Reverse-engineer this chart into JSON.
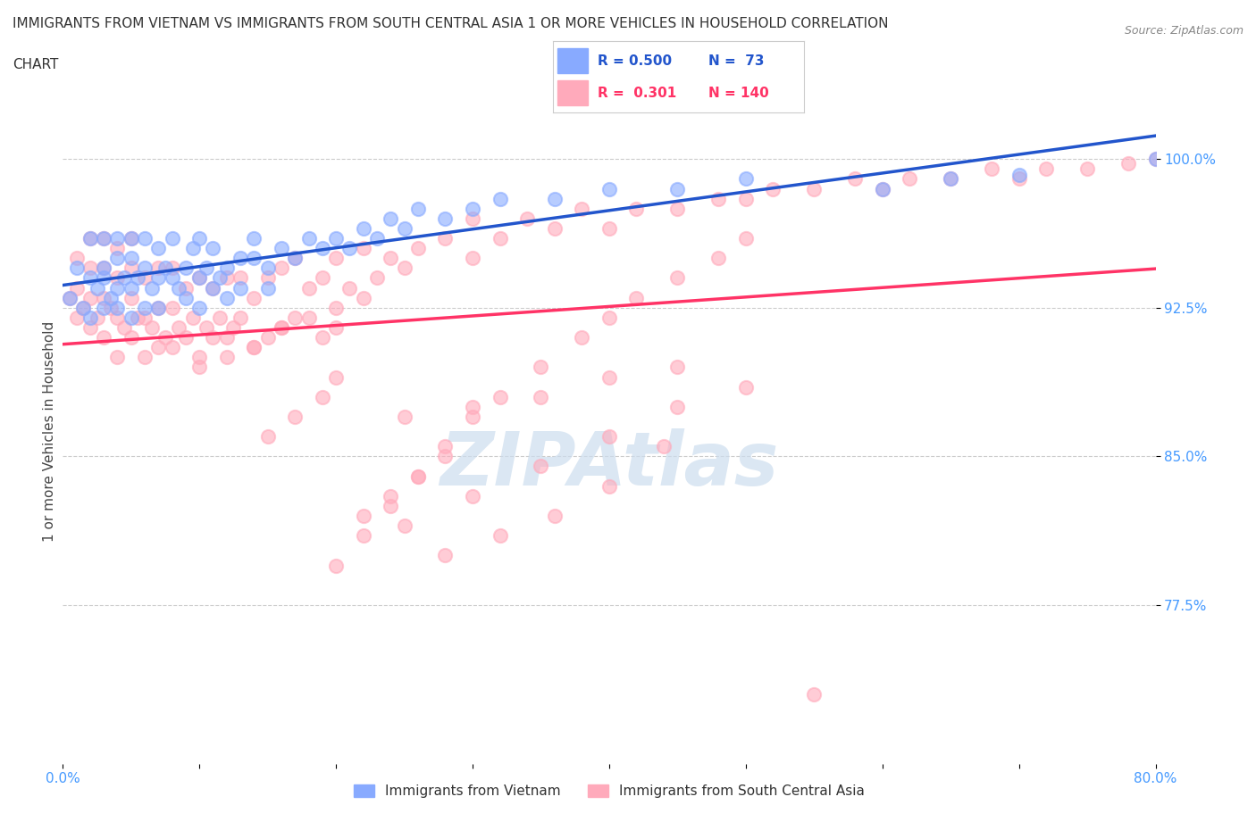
{
  "title_line1": "IMMIGRANTS FROM VIETNAM VS IMMIGRANTS FROM SOUTH CENTRAL ASIA 1 OR MORE VEHICLES IN HOUSEHOLD CORRELATION",
  "title_line2": "CHART",
  "source_text": "Source: ZipAtlas.com",
  "ylabel": "1 or more Vehicles in Household",
  "xlim": [
    0.0,
    0.8
  ],
  "ylim": [
    0.695,
    1.03
  ],
  "yticks": [
    0.775,
    0.85,
    0.925,
    1.0
  ],
  "ytick_labels": [
    "77.5%",
    "85.0%",
    "92.5%",
    "100.0%"
  ],
  "xticks": [
    0.0,
    0.1,
    0.2,
    0.3,
    0.4,
    0.5,
    0.6,
    0.7,
    0.8
  ],
  "xtick_labels": [
    "0.0%",
    "",
    "",
    "",
    "",
    "",
    "",
    "",
    "80.0%"
  ],
  "legend_R1": "0.500",
  "legend_N1": "73",
  "legend_R2": "0.301",
  "legend_N2": "140",
  "color_vietnam": "#88aaff",
  "color_sca": "#ffaabb",
  "line_color_vietnam": "#2255cc",
  "line_color_sca": "#ff3366",
  "watermark": "ZIPAtlas",
  "watermark_color": "#ccddee",
  "grid_color": "#cccccc",
  "tick_label_color": "#4499ff",
  "background_color": "#ffffff",
  "vietnam_x": [
    0.005,
    0.01,
    0.015,
    0.02,
    0.02,
    0.02,
    0.025,
    0.03,
    0.03,
    0.03,
    0.03,
    0.035,
    0.04,
    0.04,
    0.04,
    0.04,
    0.045,
    0.05,
    0.05,
    0.05,
    0.05,
    0.055,
    0.06,
    0.06,
    0.06,
    0.065,
    0.07,
    0.07,
    0.07,
    0.075,
    0.08,
    0.08,
    0.085,
    0.09,
    0.09,
    0.095,
    0.1,
    0.1,
    0.1,
    0.105,
    0.11,
    0.11,
    0.115,
    0.12,
    0.12,
    0.13,
    0.13,
    0.14,
    0.14,
    0.15,
    0.15,
    0.16,
    0.17,
    0.18,
    0.19,
    0.2,
    0.21,
    0.22,
    0.23,
    0.24,
    0.25,
    0.26,
    0.28,
    0.3,
    0.32,
    0.36,
    0.4,
    0.45,
    0.5,
    0.6,
    0.65,
    0.7,
    0.8
  ],
  "vietnam_y": [
    0.93,
    0.945,
    0.925,
    0.92,
    0.94,
    0.96,
    0.935,
    0.94,
    0.925,
    0.945,
    0.96,
    0.93,
    0.935,
    0.95,
    0.925,
    0.96,
    0.94,
    0.935,
    0.95,
    0.92,
    0.96,
    0.94,
    0.945,
    0.925,
    0.96,
    0.935,
    0.94,
    0.955,
    0.925,
    0.945,
    0.94,
    0.96,
    0.935,
    0.945,
    0.93,
    0.955,
    0.94,
    0.925,
    0.96,
    0.945,
    0.935,
    0.955,
    0.94,
    0.945,
    0.93,
    0.95,
    0.935,
    0.95,
    0.96,
    0.945,
    0.935,
    0.955,
    0.95,
    0.96,
    0.955,
    0.96,
    0.955,
    0.965,
    0.96,
    0.97,
    0.965,
    0.975,
    0.97,
    0.975,
    0.98,
    0.98,
    0.985,
    0.985,
    0.99,
    0.985,
    0.99,
    0.992,
    1.0
  ],
  "sca_x": [
    0.005,
    0.01,
    0.01,
    0.01,
    0.015,
    0.02,
    0.02,
    0.02,
    0.02,
    0.025,
    0.03,
    0.03,
    0.03,
    0.03,
    0.035,
    0.04,
    0.04,
    0.04,
    0.04,
    0.045,
    0.05,
    0.05,
    0.05,
    0.05,
    0.055,
    0.06,
    0.06,
    0.06,
    0.065,
    0.07,
    0.07,
    0.07,
    0.075,
    0.08,
    0.08,
    0.08,
    0.085,
    0.09,
    0.09,
    0.095,
    0.1,
    0.1,
    0.105,
    0.11,
    0.11,
    0.115,
    0.12,
    0.12,
    0.125,
    0.13,
    0.13,
    0.14,
    0.14,
    0.15,
    0.15,
    0.16,
    0.16,
    0.17,
    0.17,
    0.18,
    0.19,
    0.19,
    0.2,
    0.2,
    0.21,
    0.22,
    0.22,
    0.23,
    0.24,
    0.25,
    0.26,
    0.28,
    0.3,
    0.3,
    0.32,
    0.34,
    0.36,
    0.38,
    0.4,
    0.42,
    0.45,
    0.48,
    0.5,
    0.52,
    0.55,
    0.58,
    0.6,
    0.62,
    0.65,
    0.68,
    0.7,
    0.72,
    0.75,
    0.78,
    0.8,
    0.1,
    0.12,
    0.14,
    0.16,
    0.18,
    0.2,
    0.25,
    0.3,
    0.35,
    0.4,
    0.45,
    0.22,
    0.24,
    0.26,
    0.28,
    0.15,
    0.17,
    0.19,
    0.2,
    0.25,
    0.3,
    0.35,
    0.4,
    0.45,
    0.5,
    0.28,
    0.32,
    0.36,
    0.4,
    0.44,
    0.2,
    0.22,
    0.24,
    0.26,
    0.28,
    0.3,
    0.32,
    0.35,
    0.38,
    0.4,
    0.42,
    0.45,
    0.48,
    0.5,
    0.55
  ],
  "sca_y": [
    0.93,
    0.935,
    0.92,
    0.95,
    0.925,
    0.915,
    0.93,
    0.945,
    0.96,
    0.92,
    0.91,
    0.93,
    0.945,
    0.96,
    0.925,
    0.9,
    0.92,
    0.94,
    0.955,
    0.915,
    0.91,
    0.93,
    0.945,
    0.96,
    0.92,
    0.9,
    0.92,
    0.94,
    0.915,
    0.905,
    0.925,
    0.945,
    0.91,
    0.905,
    0.925,
    0.945,
    0.915,
    0.91,
    0.935,
    0.92,
    0.9,
    0.94,
    0.915,
    0.91,
    0.935,
    0.92,
    0.91,
    0.94,
    0.915,
    0.92,
    0.94,
    0.905,
    0.93,
    0.91,
    0.94,
    0.915,
    0.945,
    0.92,
    0.95,
    0.935,
    0.91,
    0.94,
    0.915,
    0.95,
    0.935,
    0.93,
    0.955,
    0.94,
    0.95,
    0.945,
    0.955,
    0.96,
    0.95,
    0.97,
    0.96,
    0.97,
    0.965,
    0.975,
    0.965,
    0.975,
    0.975,
    0.98,
    0.98,
    0.985,
    0.985,
    0.99,
    0.985,
    0.99,
    0.99,
    0.995,
    0.99,
    0.995,
    0.995,
    0.998,
    1.0,
    0.895,
    0.9,
    0.905,
    0.915,
    0.92,
    0.925,
    0.87,
    0.875,
    0.88,
    0.89,
    0.895,
    0.82,
    0.83,
    0.84,
    0.85,
    0.86,
    0.87,
    0.88,
    0.89,
    0.815,
    0.83,
    0.845,
    0.86,
    0.875,
    0.885,
    0.8,
    0.81,
    0.82,
    0.835,
    0.855,
    0.795,
    0.81,
    0.825,
    0.84,
    0.855,
    0.87,
    0.88,
    0.895,
    0.91,
    0.92,
    0.93,
    0.94,
    0.95,
    0.96,
    0.73
  ]
}
